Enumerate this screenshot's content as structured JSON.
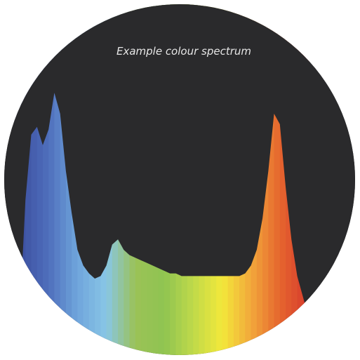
{
  "chart_data": {
    "type": "area",
    "title": "Example colour spectrum",
    "xlabel": "",
    "ylabel": "",
    "grid": false,
    "legend": "none",
    "xlim": [
      0,
      100
    ],
    "ylim": [
      0,
      100
    ],
    "x": [
      0,
      2,
      4,
      6,
      8,
      10,
      12,
      14,
      16,
      18,
      20,
      22,
      24,
      26,
      28,
      30,
      32,
      34,
      36,
      38,
      40,
      42,
      44,
      46,
      48,
      50,
      52,
      54,
      56,
      58,
      60,
      62,
      64,
      66,
      68,
      70,
      72,
      74,
      76,
      78,
      80,
      82,
      84,
      86,
      88,
      90,
      92,
      94,
      96,
      98,
      100
    ],
    "values": [
      0,
      45,
      70,
      73,
      66,
      72,
      86,
      78,
      56,
      40,
      26,
      20,
      17,
      15,
      16,
      20,
      28,
      30,
      26,
      24,
      23,
      22,
      21,
      20,
      19,
      18,
      17,
      17,
      16,
      16,
      16,
      16,
      16,
      16,
      16,
      16,
      16,
      16,
      16,
      17,
      20,
      26,
      38,
      56,
      78,
      74,
      50,
      30,
      16,
      8,
      0
    ]
  },
  "colors": {
    "background": "#2a2a2c",
    "caption": "#e6e6e6",
    "spectrum": [
      "#3c4fa0",
      "#4f6fbc",
      "#6fa5dc",
      "#88c6e6",
      "#9bc257",
      "#8fc451",
      "#bfd94a",
      "#f3e83a",
      "#f2a83b",
      "#e5652e",
      "#d63a2d"
    ]
  }
}
